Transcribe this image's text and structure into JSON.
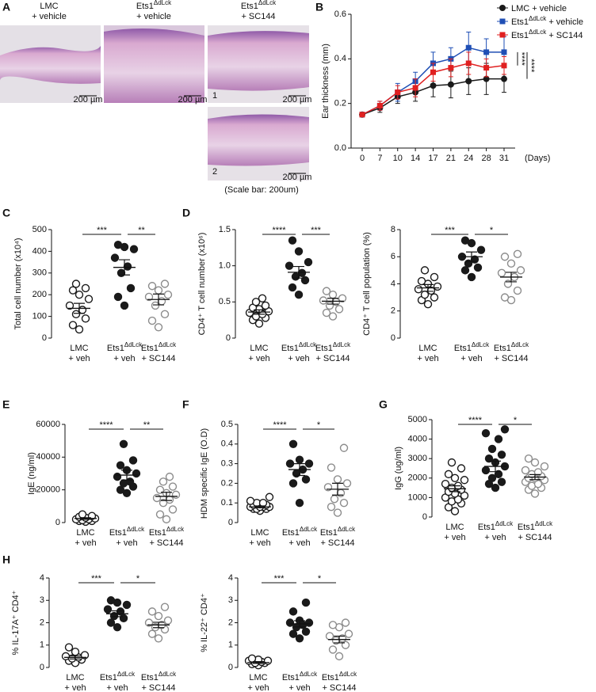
{
  "panel_letters": [
    "A",
    "B",
    "C",
    "D",
    "E",
    "F",
    "G",
    "H"
  ],
  "histology": {
    "columns": [
      [
        "LMC",
        "+ vehicle"
      ],
      [
        "Ets1ΔdLck",
        "+ vehicle"
      ],
      [
        "Ets1ΔdLck",
        "+ SC144"
      ]
    ],
    "image_numbers": [
      "1",
      "2"
    ],
    "scale_labels": [
      "200 µm",
      "200 µm",
      "200 µm",
      "200 µm"
    ],
    "caption": "(Scale bar: 200um)"
  },
  "chart_data": [
    {
      "type": "line",
      "ylabel": "Ear thickness (mm)",
      "xlabel": "(Days)",
      "categories": [
        "0",
        "7",
        "10",
        "14",
        "17",
        "21",
        "24",
        "28",
        "31"
      ],
      "ylim": [
        0,
        0.6
      ],
      "yticks": [
        {
          "value": 0,
          "label": "0.0"
        },
        0.2,
        0.4,
        0.6
      ],
      "legend": "upper right",
      "series": [
        {
          "name": "LMC + vehicle",
          "color": "#1a1a1a",
          "marker": "circle",
          "values": [
            0.15,
            0.18,
            0.23,
            0.25,
            0.28,
            0.285,
            0.3,
            0.31,
            0.31
          ],
          "errors": [
            0,
            0.02,
            0.03,
            0.04,
            0.05,
            0.06,
            0.06,
            0.07,
            0.06
          ]
        },
        {
          "name": "Ets1ΔdLck + vehicle",
          "color": "#1f4fb5",
          "marker": "square",
          "values": [
            0.15,
            0.19,
            0.25,
            0.3,
            0.38,
            0.4,
            0.45,
            0.43,
            0.43
          ],
          "errors": [
            0,
            0.02,
            0.04,
            0.04,
            0.05,
            0.05,
            0.07,
            0.06,
            0.07
          ]
        },
        {
          "name": "Ets1ΔdLck + SC144",
          "color": "#e02020",
          "marker": "square",
          "values": [
            0.15,
            0.19,
            0.25,
            0.27,
            0.34,
            0.36,
            0.38,
            0.36,
            0.37
          ],
          "errors": [
            0,
            0.02,
            0.03,
            0.04,
            0.04,
            0.04,
            0.05,
            0.04,
            0.04
          ]
        }
      ],
      "significance": [
        "****",
        "****"
      ]
    },
    {
      "type": "dot",
      "ylabel": "Total cell number (x10⁴)",
      "ylim": [
        0,
        500
      ],
      "yticks": [
        0,
        100,
        200,
        300,
        400,
        500
      ],
      "categories": [
        [
          "LMC",
          "+ veh"
        ],
        [
          "Ets1ΔdLck",
          "+ veh"
        ],
        [
          "Ets1ΔdLck",
          "+ SC144"
        ]
      ],
      "markers": [
        "open",
        "filled",
        "open"
      ],
      "colors": [
        "#1a1a1a",
        "#1a1a1a",
        "#8c8c8c"
      ],
      "groups": [
        [
          40,
          60,
          90,
          110,
          130,
          150,
          180,
          200,
          220,
          230,
          250
        ],
        [
          150,
          190,
          230,
          300,
          330,
          370,
          410,
          420,
          430
        ],
        [
          50,
          80,
          110,
          150,
          170,
          190,
          200,
          220,
          240,
          250
        ]
      ],
      "means": [
        137,
        326,
        178
      ],
      "sems": [
        23,
        35,
        25
      ],
      "significance": [
        "***",
        "**"
      ]
    },
    {
      "type": "dot",
      "ylabel": "CD4⁺ T cell number (x10⁶)",
      "ylim": [
        0,
        1.5
      ],
      "yticks": [
        0,
        0.5,
        {
          "value": 1,
          "label": "1.0"
        },
        1.5
      ],
      "categories": [
        [
          "LMC",
          "+ veh"
        ],
        [
          "Ets1ΔdLck",
          "+ veh"
        ],
        [
          "Ets1ΔdLck",
          "+ SC144"
        ]
      ],
      "markers": [
        "open",
        "filled",
        "open"
      ],
      "colors": [
        "#1a1a1a",
        "#1a1a1a",
        "#8c8c8c"
      ],
      "groups": [
        [
          0.2,
          0.25,
          0.28,
          0.3,
          0.33,
          0.35,
          0.37,
          0.4,
          0.42,
          0.45,
          0.5,
          0.55
        ],
        [
          0.6,
          0.7,
          0.8,
          0.85,
          0.9,
          1.0,
          1.05,
          1.2,
          1.35
        ],
        [
          0.3,
          0.35,
          0.4,
          0.45,
          0.5,
          0.52,
          0.55,
          0.6,
          0.65
        ]
      ],
      "means": [
        0.36,
        0.91,
        0.51
      ],
      "sems": [
        0.03,
        0.08,
        0.04
      ],
      "significance": [
        "****",
        "***"
      ]
    },
    {
      "type": "dot",
      "ylabel": "CD4⁺ T cell population (%)",
      "ylim": [
        0,
        8
      ],
      "yticks": [
        0,
        2,
        4,
        6,
        8
      ],
      "categories": [
        [
          "LMC",
          "+ veh"
        ],
        [
          "Ets1ΔdLck",
          "+ veh"
        ],
        [
          "Ets1ΔdLck",
          "+ SC144"
        ]
      ],
      "markers": [
        "open",
        "filled",
        "open"
      ],
      "colors": [
        "#1a1a1a",
        "#1a1a1a",
        "#8c8c8c"
      ],
      "groups": [
        [
          2.5,
          2.8,
          3.0,
          3.2,
          3.5,
          3.6,
          3.8,
          4.0,
          4.2,
          4.5,
          5.0
        ],
        [
          4.5,
          5.0,
          5.2,
          5.5,
          5.8,
          6.0,
          6.5,
          7.0,
          7.2
        ],
        [
          2.8,
          3.0,
          3.5,
          4.0,
          4.5,
          4.8,
          5.0,
          5.5,
          6.0,
          6.2
        ]
      ],
      "means": [
        3.7,
        6.0,
        4.5
      ],
      "sems": [
        0.25,
        0.35,
        0.35
      ],
      "significance": [
        "***",
        "*"
      ]
    },
    {
      "type": "dot",
      "ylabel": "IgE (ng/ml)",
      "ylim": [
        0,
        60000
      ],
      "yticks": [
        0,
        20000,
        40000,
        60000
      ],
      "categories": [
        [
          "LMC",
          "+ veh"
        ],
        [
          "Ets1ΔdLck",
          "+ veh"
        ],
        [
          "Ets1ΔdLck",
          "+ SC144"
        ]
      ],
      "markers": [
        "open",
        "filled",
        "open"
      ],
      "colors": [
        "#1a1a1a",
        "#1a1a1a",
        "#8c8c8c"
      ],
      "groups": [
        [
          500,
          1000,
          1000,
          1500,
          2000,
          2000,
          2500,
          3000,
          3500,
          4000,
          5000
        ],
        [
          18000,
          20000,
          22000,
          24000,
          25000,
          28000,
          30000,
          32000,
          35000,
          38000,
          48000
        ],
        [
          2000,
          5000,
          8000,
          12000,
          14000,
          15000,
          17000,
          18000,
          20000,
          22000,
          25000,
          28000
        ]
      ],
      "means": [
        2500,
        29000,
        16000
      ],
      "sems": [
        500,
        3000,
        2500
      ],
      "significance": [
        "****",
        "**"
      ]
    },
    {
      "type": "dot",
      "ylabel": "HDM specific IgE (O.D)",
      "ylim": [
        0,
        0.5
      ],
      "yticks": [
        0,
        0.1,
        0.2,
        0.3,
        0.4,
        0.5
      ],
      "categories": [
        [
          "LMC",
          "+ veh"
        ],
        [
          "Ets1ΔdLck",
          "+ veh"
        ],
        [
          "Ets1ΔdLck",
          "+ SC144"
        ]
      ],
      "markers": [
        "open",
        "filled",
        "open"
      ],
      "colors": [
        "#1a1a1a",
        "#1a1a1a",
        "#8c8c8c"
      ],
      "groups": [
        [
          0.06,
          0.07,
          0.07,
          0.07,
          0.08,
          0.08,
          0.08,
          0.08,
          0.09,
          0.09,
          0.1,
          0.1,
          0.11,
          0.13
        ],
        [
          0.1,
          0.2,
          0.22,
          0.25,
          0.27,
          0.3,
          0.3,
          0.32,
          0.4
        ],
        [
          0.05,
          0.08,
          0.1,
          0.12,
          0.15,
          0.18,
          0.2,
          0.22,
          0.28,
          0.38
        ]
      ],
      "means": [
        0.08,
        0.27,
        0.17
      ],
      "sems": [
        0.005,
        0.03,
        0.03
      ],
      "significance": [
        "****",
        "*"
      ]
    },
    {
      "type": "dot",
      "ylabel": "IgG (ug/ml)",
      "ylim": [
        0,
        5000
      ],
      "yticks": [
        0,
        1000,
        2000,
        3000,
        4000,
        5000
      ],
      "categories": [
        [
          "LMC",
          "+ veh"
        ],
        [
          "Ets1ΔdLck",
          "+ veh"
        ],
        [
          "Ets1ΔdLck",
          "+ SC144"
        ]
      ],
      "markers": [
        "open",
        "filled",
        "open"
      ],
      "colors": [
        "#1a1a1a",
        "#1a1a1a",
        "#8c8c8c"
      ],
      "groups": [
        [
          300,
          500,
          700,
          800,
          900,
          1000,
          1100,
          1200,
          1300,
          1400,
          1500,
          1600,
          1700,
          1900,
          2000,
          2200,
          2500,
          2800
        ],
        [
          1500,
          1700,
          1800,
          2000,
          2200,
          2400,
          2600,
          2800,
          3000,
          3200,
          3500,
          4000,
          4300,
          4500
        ],
        [
          1200,
          1400,
          1500,
          1600,
          1700,
          1800,
          1900,
          2000,
          2000,
          2100,
          2200,
          2300,
          2400,
          2600,
          2800,
          3000
        ]
      ],
      "means": [
        1450,
        2600,
        2050
      ],
      "sems": [
        150,
        270,
        130
      ],
      "significance": [
        "****",
        "*"
      ]
    },
    {
      "type": "dot",
      "ylabel": "% IL-17A⁺ CD4⁺",
      "ylim": [
        0,
        4
      ],
      "yticks": [
        0,
        1,
        2,
        3,
        4
      ],
      "categories": [
        [
          "LMC",
          "+ veh"
        ],
        [
          "Ets1ΔdLck",
          "+ veh"
        ],
        [
          "Ets1ΔdLck",
          "+ SC144"
        ]
      ],
      "markers": [
        "open",
        "filled",
        "open"
      ],
      "colors": [
        "#1a1a1a",
        "#1a1a1a",
        "#8c8c8c"
      ],
      "groups": [
        [
          0.2,
          0.3,
          0.35,
          0.4,
          0.45,
          0.5,
          0.55,
          0.7,
          0.9
        ],
        [
          1.8,
          2.0,
          2.2,
          2.3,
          2.5,
          2.6,
          2.8,
          2.9,
          3.0
        ],
        [
          1.3,
          1.5,
          1.7,
          1.8,
          1.9,
          2.0,
          2.1,
          2.3,
          2.5,
          2.7
        ]
      ],
      "means": [
        0.45,
        2.4,
        1.9
      ],
      "sems": [
        0.07,
        0.13,
        0.12
      ],
      "significance": [
        "***",
        "*"
      ]
    },
    {
      "type": "dot",
      "ylabel": "% IL-22⁺ CD4⁺",
      "ylim": [
        0,
        4
      ],
      "yticks": [
        0,
        1,
        2,
        3,
        4
      ],
      "categories": [
        [
          "LMC",
          "+ veh"
        ],
        [
          "Ets1ΔdLck",
          "+ veh"
        ],
        [
          "Ets1ΔdLck",
          "+ SC144"
        ]
      ],
      "markers": [
        "open",
        "filled",
        "open"
      ],
      "colors": [
        "#1a1a1a",
        "#1a1a1a",
        "#8c8c8c"
      ],
      "groups": [
        [
          0.1,
          0.15,
          0.2,
          0.2,
          0.25,
          0.3,
          0.3,
          0.35,
          0.4
        ],
        [
          1.3,
          1.5,
          1.6,
          1.8,
          1.9,
          2.0,
          2.0,
          2.1,
          2.5,
          2.9
        ],
        [
          0.5,
          0.8,
          1.0,
          1.2,
          1.3,
          1.4,
          1.5,
          1.8,
          1.9,
          2.0
        ]
      ],
      "means": [
        0.22,
        1.95,
        1.25
      ],
      "sems": [
        0.04,
        0.14,
        0.15
      ],
      "significance": [
        "***",
        "*"
      ]
    }
  ]
}
